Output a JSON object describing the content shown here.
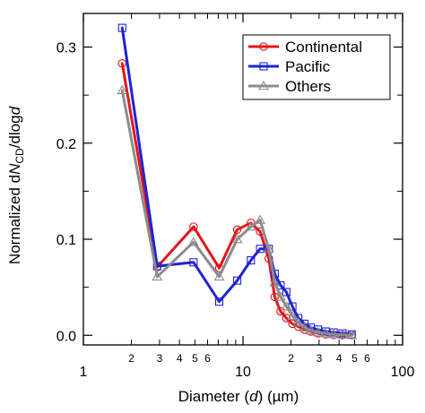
{
  "chart_data": {
    "type": "line",
    "xlabel": {
      "pre": "Diameter (",
      "var": "d",
      "post": ") (µm)"
    },
    "ylabel": {
      "pre": "Normalized d",
      "var": "N",
      "sub": "CD",
      "mid": "/dlog",
      "var2": "d"
    },
    "xscale": "log",
    "xlim": [
      1,
      100
    ],
    "ylim": [
      -0.01,
      0.335
    ],
    "x_major_ticks": [
      {
        "value": 1,
        "label": "1"
      },
      {
        "value": 10,
        "label": "10"
      },
      {
        "value": 100,
        "label": "100"
      }
    ],
    "x_minor_ticks": [
      {
        "value": 2,
        "label": "2"
      },
      {
        "value": 3,
        "label": "3"
      },
      {
        "value": 4,
        "label": "4"
      },
      {
        "value": 5,
        "label": "5"
      },
      {
        "value": 6,
        "label": "6"
      },
      {
        "value": 7,
        "label": ""
      },
      {
        "value": 8,
        "label": ""
      },
      {
        "value": 9,
        "label": ""
      },
      {
        "value": 20,
        "label": "2"
      },
      {
        "value": 30,
        "label": "3"
      },
      {
        "value": 40,
        "label": "4"
      },
      {
        "value": 50,
        "label": "5"
      },
      {
        "value": 60,
        "label": "6"
      },
      {
        "value": 70,
        "label": ""
      },
      {
        "value": 80,
        "label": ""
      },
      {
        "value": 90,
        "label": ""
      }
    ],
    "y_ticks": [
      {
        "value": 0.0,
        "label": "0.0"
      },
      {
        "value": 0.1,
        "label": "0.1"
      },
      {
        "value": 0.2,
        "label": "0.2"
      },
      {
        "value": 0.3,
        "label": "0.3"
      }
    ],
    "y_minor_ticks": [
      0.05,
      0.15,
      0.25
    ],
    "legend_position": "top-right",
    "series": [
      {
        "name": "Continental",
        "color": "#e8131b",
        "marker": "circle",
        "x": [
          1.75,
          2.9,
          4.9,
          7.1,
          9.2,
          11.2,
          12.8,
          14.5,
          15.8,
          17.2,
          18.7,
          20.4,
          22.2,
          24.3,
          26.6,
          29.5,
          33.0,
          37.0,
          42.0,
          48.0
        ],
        "y": [
          0.283,
          0.071,
          0.113,
          0.07,
          0.11,
          0.117,
          0.108,
          0.08,
          0.04,
          0.025,
          0.018,
          0.012,
          0.009,
          0.006,
          0.004,
          0.002,
          0.001,
          0.0005,
          0.0002,
          0.0001
        ]
      },
      {
        "name": "Pacific",
        "color": "#1f23d6",
        "marker": "square",
        "x": [
          1.75,
          2.9,
          4.9,
          7.1,
          9.2,
          11.2,
          12.8,
          14.5,
          15.8,
          17.2,
          18.7,
          20.4,
          22.2,
          24.3,
          26.6,
          29.5,
          33.0,
          37.0,
          42.0,
          48.0
        ],
        "y": [
          0.32,
          0.072,
          0.076,
          0.035,
          0.057,
          0.078,
          0.09,
          0.09,
          0.064,
          0.052,
          0.045,
          0.03,
          0.018,
          0.012,
          0.008,
          0.006,
          0.004,
          0.003,
          0.002,
          0.001
        ]
      },
      {
        "name": "Others",
        "color": "#8c8c8c",
        "marker": "triangle",
        "x": [
          1.75,
          2.9,
          4.9,
          7.1,
          9.2,
          11.2,
          12.8,
          14.5,
          15.8,
          17.2,
          18.7,
          20.4,
          22.2,
          24.3,
          26.6,
          29.5,
          33.0,
          37.0,
          42.0,
          48.0
        ],
        "y": [
          0.255,
          0.061,
          0.097,
          0.061,
          0.1,
          0.113,
          0.12,
          0.09,
          0.055,
          0.04,
          0.03,
          0.02,
          0.013,
          0.008,
          0.005,
          0.003,
          0.002,
          0.001,
          0.0005,
          0.0002
        ]
      }
    ]
  }
}
